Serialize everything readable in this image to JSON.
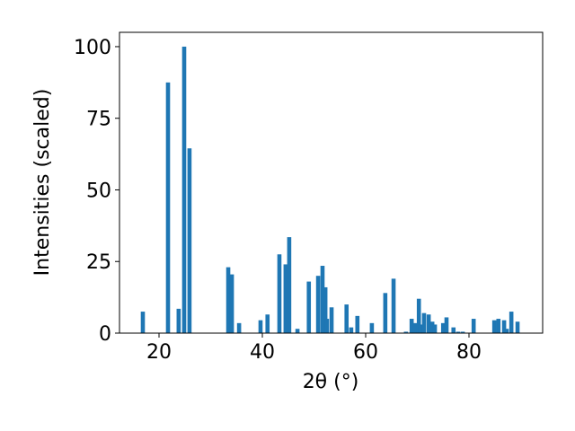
{
  "chart_data": {
    "type": "bar",
    "xlabel": "2θ (°)",
    "ylabel": "Intensities (scaled)",
    "color": "#1f77b4",
    "x": [
      16.87,
      21.74,
      23.8,
      24.87,
      25.9,
      33.4,
      34.1,
      35.5,
      39.65,
      41.0,
      43.3,
      44.5,
      45.2,
      46.8,
      49.0,
      50.8,
      51.65,
      52.2,
      52.5,
      53.4,
      56.3,
      57.2,
      58.4,
      61.2,
      63.8,
      65.4,
      67.8,
      68.9,
      69.6,
      70.3,
      70.6,
      71.3,
      72.2,
      72.9,
      73.4,
      75.0,
      75.65,
      77.0,
      77.9,
      78.8,
      80.9,
      84.9,
      85.7,
      86.8,
      87.3,
      88.2,
      89.4
    ],
    "values": [
      7.5,
      87.5,
      8.5,
      100,
      64.5,
      23,
      20.5,
      3.5,
      4.5,
      6.5,
      27.5,
      24,
      33.5,
      1.5,
      18,
      20,
      23.5,
      16,
      5,
      9,
      10,
      2,
      6,
      3.5,
      14,
      19,
      0.5,
      5,
      3.5,
      12,
      3,
      7,
      6.5,
      4,
      3,
      3.5,
      5.5,
      2,
      0.5,
      0.5,
      5,
      4.5,
      5,
      4.5,
      1.5,
      7.5,
      4
    ],
    "xlim": [
      12.35,
      94.26
    ],
    "xticks": [
      20,
      40,
      60,
      80
    ],
    "ylim": [
      0,
      105
    ],
    "yticks": [
      0,
      25,
      50,
      75,
      100
    ]
  }
}
